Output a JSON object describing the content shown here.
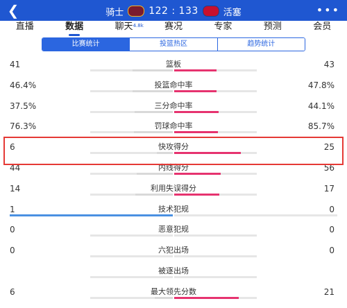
{
  "header": {
    "home_team": "骑士",
    "away_team": "活塞",
    "score": "122 : 133",
    "home_logo_text": "CLE",
    "away_logo_text": "DET",
    "back_icon": "chevron-left-icon",
    "more_icon": "more-dots-icon"
  },
  "tabs": [
    {
      "label": "直播"
    },
    {
      "label": "数据",
      "active": true
    },
    {
      "label": "聊天",
      "badge": "4.8k"
    },
    {
      "label": "赛况"
    },
    {
      "label": "专家"
    },
    {
      "label": "预测"
    },
    {
      "label": "会员"
    }
  ],
  "segments": [
    {
      "label": "比赛统计",
      "active": true
    },
    {
      "label": "投篮热区"
    },
    {
      "label": "趋势统计"
    }
  ],
  "stats": [
    {
      "label": "篮板",
      "left": "41",
      "right": "43",
      "left_frac": 0.49,
      "right_frac": 0.51
    },
    {
      "label": "投篮命中率",
      "left": "46.4%",
      "right": "47.8%",
      "left_frac": 0.49,
      "right_frac": 0.51
    },
    {
      "label": "三分命中率",
      "left": "37.5%",
      "right": "44.1%",
      "left_frac": 0.46,
      "right_frac": 0.54
    },
    {
      "label": "罚球命中率",
      "left": "76.3%",
      "right": "85.7%",
      "left_frac": 0.47,
      "right_frac": 0.53
    },
    {
      "label": "快攻得分",
      "left": "6",
      "right": "25",
      "left_frac": 0.19,
      "right_frac": 0.81
    },
    {
      "label": "内线得分",
      "left": "44",
      "right": "56",
      "left_frac": 0.44,
      "right_frac": 0.56
    },
    {
      "label": "利用失误得分",
      "left": "14",
      "right": "17",
      "left_frac": 0.45,
      "right_frac": 0.55
    },
    {
      "label": "技术犯规",
      "left": "1",
      "right": "0",
      "left_frac": 1.0,
      "right_frac": 0.0
    },
    {
      "label": "恶意犯规",
      "left": "0",
      "right": "0",
      "left_frac": 0.0,
      "right_frac": 0.0
    },
    {
      "label": "六犯出场",
      "left": "0",
      "right": "0",
      "left_frac": 0.0,
      "right_frac": 0.0
    },
    {
      "label": "被逐出场",
      "left": "",
      "right": "",
      "left_frac": 0.0,
      "right_frac": 0.0
    },
    {
      "label": "最大领先分数",
      "left": "6",
      "right": "21",
      "left_frac": 0.22,
      "right_frac": 0.78
    }
  ],
  "highlighted_stat": "快攻得分",
  "colors": {
    "header_bg": "#1f57d1",
    "accent": "#2b66e0",
    "away_bar": "#e6336f",
    "home_bar": "#d9d9d9",
    "home_bar_leading": "#4a90e2",
    "highlight_border": "#e53935"
  }
}
